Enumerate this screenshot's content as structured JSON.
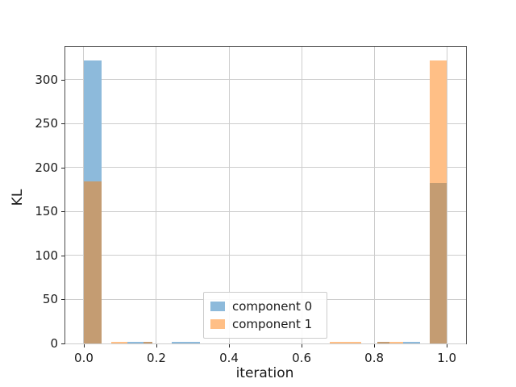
{
  "chart_data": {
    "type": "bar",
    "title": "",
    "xlabel": "iteration",
    "ylabel": "KL",
    "xlim": [
      -0.051,
      1.053
    ],
    "ylim": [
      0,
      337.6
    ],
    "grid": true,
    "x_ticks": {
      "values": [
        0.0,
        0.2,
        0.4,
        0.6,
        0.8,
        1.0
      ],
      "labels": [
        "0.0",
        "0.2",
        "0.4",
        "0.6",
        "0.8",
        "1.0"
      ]
    },
    "y_ticks": {
      "values": [
        0,
        50,
        100,
        150,
        200,
        250,
        300
      ],
      "labels": [
        "0",
        "50",
        "100",
        "150",
        "200",
        "250",
        "300"
      ]
    },
    "legend": {
      "position": "lower center",
      "entries": [
        {
          "label": "component 0",
          "color_key": "component0"
        },
        {
          "label": "component 1",
          "color_key": "component1"
        }
      ]
    },
    "series": [
      {
        "name": "component 0",
        "peak_bin": [
          0.0,
          0.048
        ],
        "peak_value": 321.6
      },
      {
        "name": "component 1",
        "peak_bin": [
          0.952,
          1.0
        ],
        "peak_value": 321.6
      }
    ],
    "bars": [
      {
        "x0": 0.0,
        "x1": 0.048,
        "value": 321.6,
        "color_key": "component0"
      },
      {
        "x0": 0.0,
        "x1": 0.048,
        "value": 184.3,
        "color_key": "overlap"
      },
      {
        "x0": 0.076,
        "x1": 0.12,
        "value": 2.0,
        "color_key": "component1"
      },
      {
        "x0": 0.12,
        "x1": 0.164,
        "value": 2.0,
        "color_key": "component0"
      },
      {
        "x0": 0.164,
        "x1": 0.19,
        "value": 2.0,
        "color_key": "overlap"
      },
      {
        "x0": 0.242,
        "x1": 0.32,
        "value": 2.0,
        "color_key": "component0"
      },
      {
        "x0": 0.678,
        "x1": 0.764,
        "value": 2.0,
        "color_key": "component1"
      },
      {
        "x0": 0.808,
        "x1": 0.842,
        "value": 2.0,
        "color_key": "overlap"
      },
      {
        "x0": 0.842,
        "x1": 0.879,
        "value": 2.0,
        "color_key": "component1"
      },
      {
        "x0": 0.879,
        "x1": 0.927,
        "value": 2.0,
        "color_key": "component0"
      },
      {
        "x0": 0.952,
        "x1": 1.0,
        "value": 321.6,
        "color_key": "component1"
      },
      {
        "x0": 0.952,
        "x1": 1.0,
        "value": 182.5,
        "color_key": "overlap"
      }
    ],
    "colors": {
      "component0": "#8dbadb",
      "component1": "#ffbf86",
      "overlap": "#c49c72",
      "grid": "#cdcdcd",
      "spine": "#4d4d4d",
      "tick": "#262626",
      "text": "#1a1a1a",
      "legend_border": "#cccccc",
      "background": "#ffffff"
    }
  }
}
